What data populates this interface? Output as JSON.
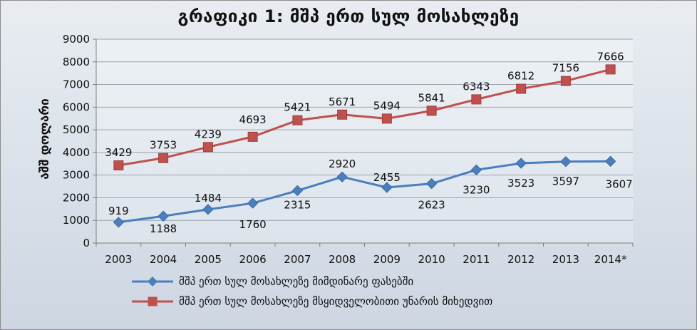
{
  "chart_data": {
    "type": "line",
    "title": "გრაფიკი 1: მშპ ერთ სულ მოსახლეზე",
    "xlabel": "",
    "ylabel": "აშშ დოლარი",
    "ylim": [
      0,
      9000
    ],
    "yticks": [
      0,
      1000,
      2000,
      3000,
      4000,
      5000,
      6000,
      7000,
      8000,
      9000
    ],
    "categories": [
      "2003",
      "2004",
      "2005",
      "2006",
      "2007",
      "2008",
      "2009",
      "2010",
      "2011",
      "2012",
      "2013",
      "2014*"
    ],
    "grid": true,
    "legend_position": "bottom",
    "series": [
      {
        "name": "მშპ ერთ სულ მოსახლეზე მიმდინარე ფასებში",
        "color": "#4a7ebf",
        "marker": "diamond",
        "values": [
          919,
          1188,
          1484,
          1760,
          2315,
          2920,
          2455,
          2623,
          3230,
          3523,
          3597,
          3607
        ]
      },
      {
        "name": "მშპ ერთ სულ მოსახლეზე მსყიდველობითი უნარის მიხედვით",
        "color": "#c0504d",
        "marker": "square",
        "values": [
          3429,
          3753,
          4239,
          4693,
          5421,
          5671,
          5494,
          5841,
          6343,
          6812,
          7156,
          7666
        ]
      }
    ]
  }
}
